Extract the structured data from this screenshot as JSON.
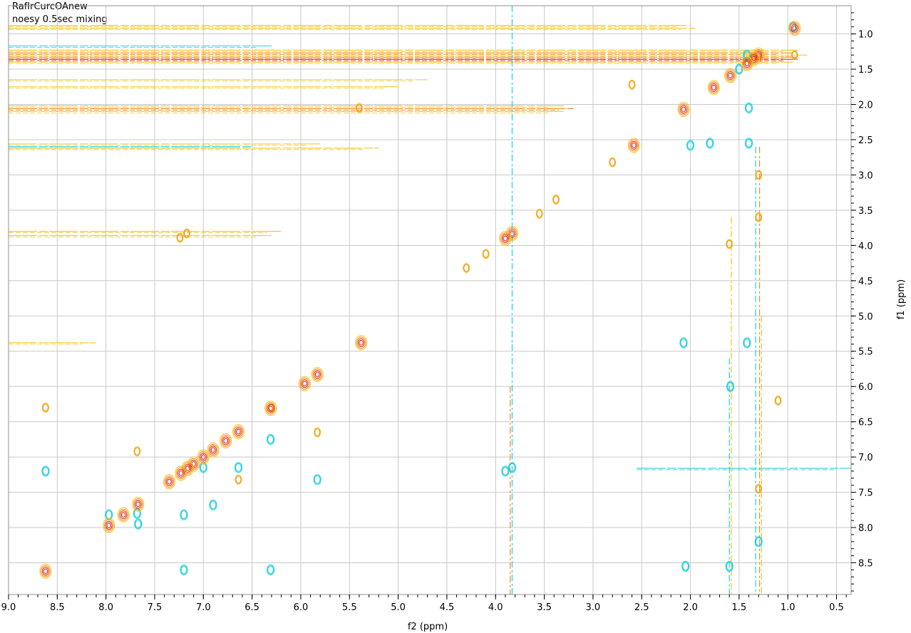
{
  "chart_data": {
    "type": "scatter",
    "title_lines": [
      "RafIrCurcOAnew",
      "noesy 0.5sec mixing"
    ],
    "xlabel": "f2 (ppm)",
    "ylabel": "f1 (ppm)",
    "xlim": [
      9.0,
      0.35
    ],
    "ylim": [
      0.6,
      8.95
    ],
    "x_reversed": true,
    "y_reversed": true,
    "grid": true,
    "xticks": [
      9.0,
      8.5,
      8.0,
      7.5,
      7.0,
      6.5,
      6.0,
      5.5,
      5.0,
      4.5,
      4.0,
      3.5,
      3.0,
      2.5,
      2.0,
      1.5,
      1.0,
      0.5
    ],
    "xtick_labels": [
      "9.0",
      "8.5",
      "8.0",
      "7.5",
      "7.0",
      "6.5",
      "6.0",
      "5.5",
      "5.0",
      "4.5",
      "4.0",
      "3.5",
      "3.0",
      "2.5",
      "2.0",
      "1.5",
      "1.0",
      "0.5"
    ],
    "yticks": [
      1.0,
      1.5,
      2.0,
      2.5,
      3.0,
      3.5,
      4.0,
      4.5,
      5.0,
      5.5,
      6.0,
      6.5,
      7.0,
      7.5,
      8.0,
      8.5
    ],
    "ytick_labels": [
      "1.0",
      "1.5",
      "2.0",
      "2.5",
      "3.0",
      "3.5",
      "4.0",
      "4.5",
      "5.0",
      "5.5",
      "6.0",
      "6.5",
      "7.0",
      "7.5",
      "8.0",
      "8.5"
    ],
    "colors": {
      "positive_strong": "#e0301e",
      "positive_mid": "#f08a1e",
      "positive_weak": "#f5c518",
      "negative": "#1fd0e0",
      "grid": "#c8c8c8"
    },
    "diagonal_peaks": [
      {
        "x": 0.93,
        "y": 0.92
      },
      {
        "x": 1.3,
        "y": 1.3
      },
      {
        "x": 1.35,
        "y": 1.35
      },
      {
        "x": 1.42,
        "y": 1.42
      },
      {
        "x": 1.59,
        "y": 1.59
      },
      {
        "x": 1.76,
        "y": 1.76
      },
      {
        "x": 2.07,
        "y": 2.07
      },
      {
        "x": 2.58,
        "y": 2.58
      },
      {
        "x": 3.83,
        "y": 3.83
      },
      {
        "x": 3.9,
        "y": 3.9
      },
      {
        "x": 5.38,
        "y": 5.38
      },
      {
        "x": 5.83,
        "y": 5.83
      },
      {
        "x": 5.96,
        "y": 5.96
      },
      {
        "x": 6.31,
        "y": 6.31
      },
      {
        "x": 6.64,
        "y": 6.64
      },
      {
        "x": 6.77,
        "y": 6.77
      },
      {
        "x": 6.9,
        "y": 6.9
      },
      {
        "x": 7.0,
        "y": 7.0
      },
      {
        "x": 7.1,
        "y": 7.1
      },
      {
        "x": 7.16,
        "y": 7.16
      },
      {
        "x": 7.23,
        "y": 7.23
      },
      {
        "x": 7.35,
        "y": 7.35
      },
      {
        "x": 7.67,
        "y": 7.67
      },
      {
        "x": 7.82,
        "y": 7.82
      },
      {
        "x": 7.97,
        "y": 7.97
      },
      {
        "x": 8.62,
        "y": 8.62
      }
    ],
    "positive_cross_peaks": [
      {
        "x": 5.4,
        "y": 2.05
      },
      {
        "x": 7.17,
        "y": 3.83
      },
      {
        "x": 7.24,
        "y": 3.89
      },
      {
        "x": 6.3,
        "y": 6.3
      },
      {
        "x": 7.68,
        "y": 6.92
      },
      {
        "x": 6.64,
        "y": 7.32
      },
      {
        "x": 1.3,
        "y": 7.45
      },
      {
        "x": 1.3,
        "y": 3.0
      },
      {
        "x": 1.3,
        "y": 3.6
      },
      {
        "x": 2.6,
        "y": 1.72
      },
      {
        "x": 8.62,
        "y": 6.3
      },
      {
        "x": 5.83,
        "y": 6.65
      },
      {
        "x": 3.55,
        "y": 3.55
      },
      {
        "x": 3.38,
        "y": 3.35
      },
      {
        "x": 4.1,
        "y": 4.12
      },
      {
        "x": 4.3,
        "y": 4.32
      },
      {
        "x": 2.8,
        "y": 2.82
      },
      {
        "x": 0.93,
        "y": 1.3
      },
      {
        "x": 1.1,
        "y": 6.2
      },
      {
        "x": 1.6,
        "y": 3.98
      }
    ],
    "negative_cross_peaks": [
      {
        "x": 1.4,
        "y": 2.05
      },
      {
        "x": 1.4,
        "y": 2.55
      },
      {
        "x": 1.8,
        "y": 2.55
      },
      {
        "x": 2.0,
        "y": 2.58
      },
      {
        "x": 2.07,
        "y": 5.38
      },
      {
        "x": 1.42,
        "y": 5.38
      },
      {
        "x": 1.59,
        "y": 6.0
      },
      {
        "x": 3.9,
        "y": 7.2
      },
      {
        "x": 3.83,
        "y": 7.15
      },
      {
        "x": 8.62,
        "y": 7.2
      },
      {
        "x": 7.97,
        "y": 7.82
      },
      {
        "x": 7.67,
        "y": 7.95
      },
      {
        "x": 7.2,
        "y": 7.82
      },
      {
        "x": 6.9,
        "y": 7.68
      },
      {
        "x": 7.2,
        "y": 8.6
      },
      {
        "x": 6.31,
        "y": 8.6
      },
      {
        "x": 6.31,
        "y": 6.75
      },
      {
        "x": 6.64,
        "y": 7.15
      },
      {
        "x": 1.5,
        "y": 1.5
      },
      {
        "x": 1.42,
        "y": 1.3
      },
      {
        "x": 0.95,
        "y": 0.9
      },
      {
        "x": 2.05,
        "y": 8.55
      },
      {
        "x": 1.6,
        "y": 8.55
      },
      {
        "x": 5.83,
        "y": 7.32
      },
      {
        "x": 7.0,
        "y": 7.15
      },
      {
        "x": 7.68,
        "y": 7.8
      },
      {
        "x": 1.3,
        "y": 8.2
      }
    ],
    "horizontal_streaks": [
      {
        "y": 0.88,
        "x_from": 9.0,
        "x_to": 2.0,
        "color": "positive_weak"
      },
      {
        "y": 0.92,
        "x_from": 9.0,
        "x_to": 1.95,
        "color": "positive_weak"
      },
      {
        "y": 1.17,
        "x_from": 9.0,
        "x_to": 6.3,
        "color": "negative"
      },
      {
        "y": 1.23,
        "x_from": 9.0,
        "x_to": 0.9,
        "color": "positive_weak"
      },
      {
        "y": 1.27,
        "x_from": 9.0,
        "x_to": 0.95,
        "color": "positive_mid"
      },
      {
        "y": 1.3,
        "x_from": 9.0,
        "x_to": 0.8,
        "color": "positive_weak"
      },
      {
        "y": 1.33,
        "x_from": 9.0,
        "x_to": 0.9,
        "color": "positive_mid"
      },
      {
        "y": 1.36,
        "x_from": 9.0,
        "x_to": 0.9,
        "color": "positive_strong"
      },
      {
        "y": 1.4,
        "x_from": 9.0,
        "x_to": 0.95,
        "color": "positive_weak"
      },
      {
        "y": 1.65,
        "x_from": 9.0,
        "x_to": 4.7,
        "color": "positive_weak"
      },
      {
        "y": 1.75,
        "x_from": 9.0,
        "x_to": 5.0,
        "color": "positive_weak"
      },
      {
        "y": 2.02,
        "x_from": 9.0,
        "x_to": 3.3,
        "color": "positive_weak"
      },
      {
        "y": 2.06,
        "x_from": 9.0,
        "x_to": 3.2,
        "color": "positive_mid"
      },
      {
        "y": 2.1,
        "x_from": 9.0,
        "x_to": 3.3,
        "color": "positive_weak"
      },
      {
        "y": 2.56,
        "x_from": 9.0,
        "x_to": 5.8,
        "color": "positive_weak"
      },
      {
        "y": 2.6,
        "x_from": 9.0,
        "x_to": 6.5,
        "color": "negative"
      },
      {
        "y": 2.62,
        "x_from": 9.0,
        "x_to": 5.2,
        "color": "positive_weak"
      },
      {
        "y": 3.8,
        "x_from": 9.0,
        "x_to": 6.2,
        "color": "positive_weak"
      },
      {
        "y": 3.86,
        "x_from": 9.0,
        "x_to": 6.3,
        "color": "positive_weak"
      },
      {
        "y": 5.38,
        "x_from": 9.0,
        "x_to": 8.1,
        "color": "positive_weak"
      },
      {
        "y": 7.16,
        "x_from": 2.55,
        "x_to": 0.35,
        "color": "negative"
      }
    ],
    "vertical_streaks": [
      {
        "x": 3.83,
        "y_from": 0.6,
        "y_to": 8.95,
        "color": "negative"
      },
      {
        "x": 3.85,
        "y_from": 6.0,
        "y_to": 8.95,
        "color": "positive_mid"
      },
      {
        "x": 1.29,
        "y_from": 2.6,
        "y_to": 8.95,
        "color": "positive_mid"
      },
      {
        "x": 1.33,
        "y_from": 2.6,
        "y_to": 8.95,
        "color": "negative"
      },
      {
        "x": 1.27,
        "y_from": 5.0,
        "y_to": 8.95,
        "color": "positive_weak"
      },
      {
        "x": 1.6,
        "y_from": 5.6,
        "y_to": 8.95,
        "color": "negative"
      },
      {
        "x": 1.58,
        "y_from": 3.6,
        "y_to": 8.95,
        "color": "positive_weak"
      }
    ]
  }
}
